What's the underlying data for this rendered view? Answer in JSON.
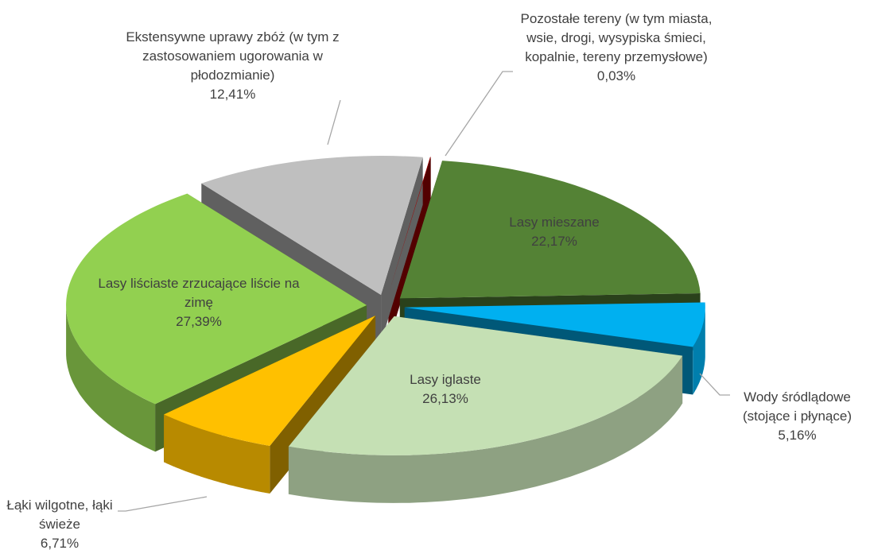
{
  "chart_data": {
    "type": "pie3d",
    "categories": [
      "Pozostałe tereny (w tym miasta, wsie, drogi, wysypiska śmieci, kopalnie, tereny przemysłowe)",
      "Lasy mieszane",
      "Wody śródlądowe (stojące i płynące)",
      "Lasy iglaste",
      "Łąki wilgotne, łąki świeże",
      "Lasy liściaste zrzucające liście na zimę",
      "Ekstensywne uprawy zbóż (w tym z zastosowaniem ugorowania w płodozmianie)"
    ],
    "values": [
      0.03,
      22.17,
      5.16,
      26.13,
      6.71,
      27.39,
      12.41
    ],
    "value_labels": [
      "0,03%",
      "22,17%",
      "5,16%",
      "26,13%",
      "6,71%",
      "27,39%",
      "12,41%"
    ],
    "colors": [
      "#a50000",
      "#548235",
      "#00b0f0",
      "#c5e0b4",
      "#ffc000",
      "#92d050",
      "#bfbfbf"
    ]
  }
}
